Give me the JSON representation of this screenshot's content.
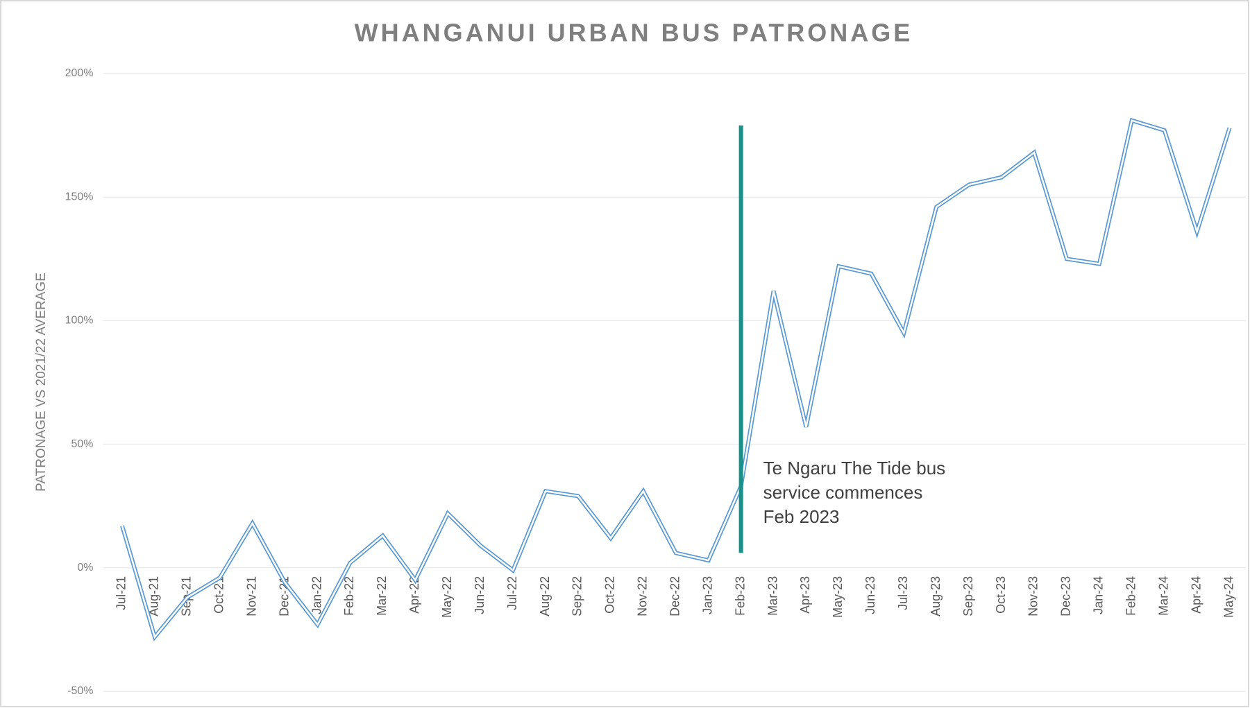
{
  "chart_data": {
    "type": "line",
    "title": "WHANGANUI URBAN BUS PATRONAGE",
    "y_label": "PATRONAGE VS 2021/22 AVERAGE",
    "categories": [
      "Jul-21",
      "Aug-21",
      "Sep-21",
      "Oct-21",
      "Nov-21",
      "Dec-21",
      "Jan-22",
      "Feb-22",
      "Mar-22",
      "Apr-22",
      "May-22",
      "Jun-22",
      "Jul-22",
      "Aug-22",
      "Sep-22",
      "Oct-22",
      "Nov-22",
      "Dec-22",
      "Jan-23",
      "Feb-23",
      "Mar-23",
      "Apr-23",
      "May-23",
      "Jun-23",
      "Jul-23",
      "Aug-23",
      "Sep-23",
      "Oct-23",
      "Nov-23",
      "Dec-23",
      "Jan-24",
      "Feb-24",
      "Mar-24",
      "Apr-24",
      "May-24"
    ],
    "values": [
      17,
      -28,
      -12,
      -4,
      18,
      -6,
      -23,
      2,
      13,
      -5,
      22,
      9,
      -1,
      31,
      29,
      12,
      31,
      6,
      3,
      33,
      112,
      57,
      122,
      119,
      95,
      146,
      155,
      158,
      168,
      125,
      123,
      181,
      177,
      136,
      178
    ],
    "color": "#5b9bd5",
    "ylim": [
      -50,
      200
    ],
    "yticks": [
      {
        "value": -50,
        "label": "-50%"
      },
      {
        "value": 0,
        "label": "0%"
      },
      {
        "value": 50,
        "label": "50%"
      },
      {
        "value": 100,
        "label": "100%"
      },
      {
        "value": 150,
        "label": "150%"
      },
      {
        "value": 200,
        "label": "200%"
      }
    ],
    "grid": true,
    "marker": {
      "x": "Feb-23",
      "ymin": 6,
      "ymax": 179,
      "color": "#17918a"
    },
    "annotation": [
      "Te Ngaru The Tide bus",
      "service commences",
      "Feb 2023"
    ]
  }
}
